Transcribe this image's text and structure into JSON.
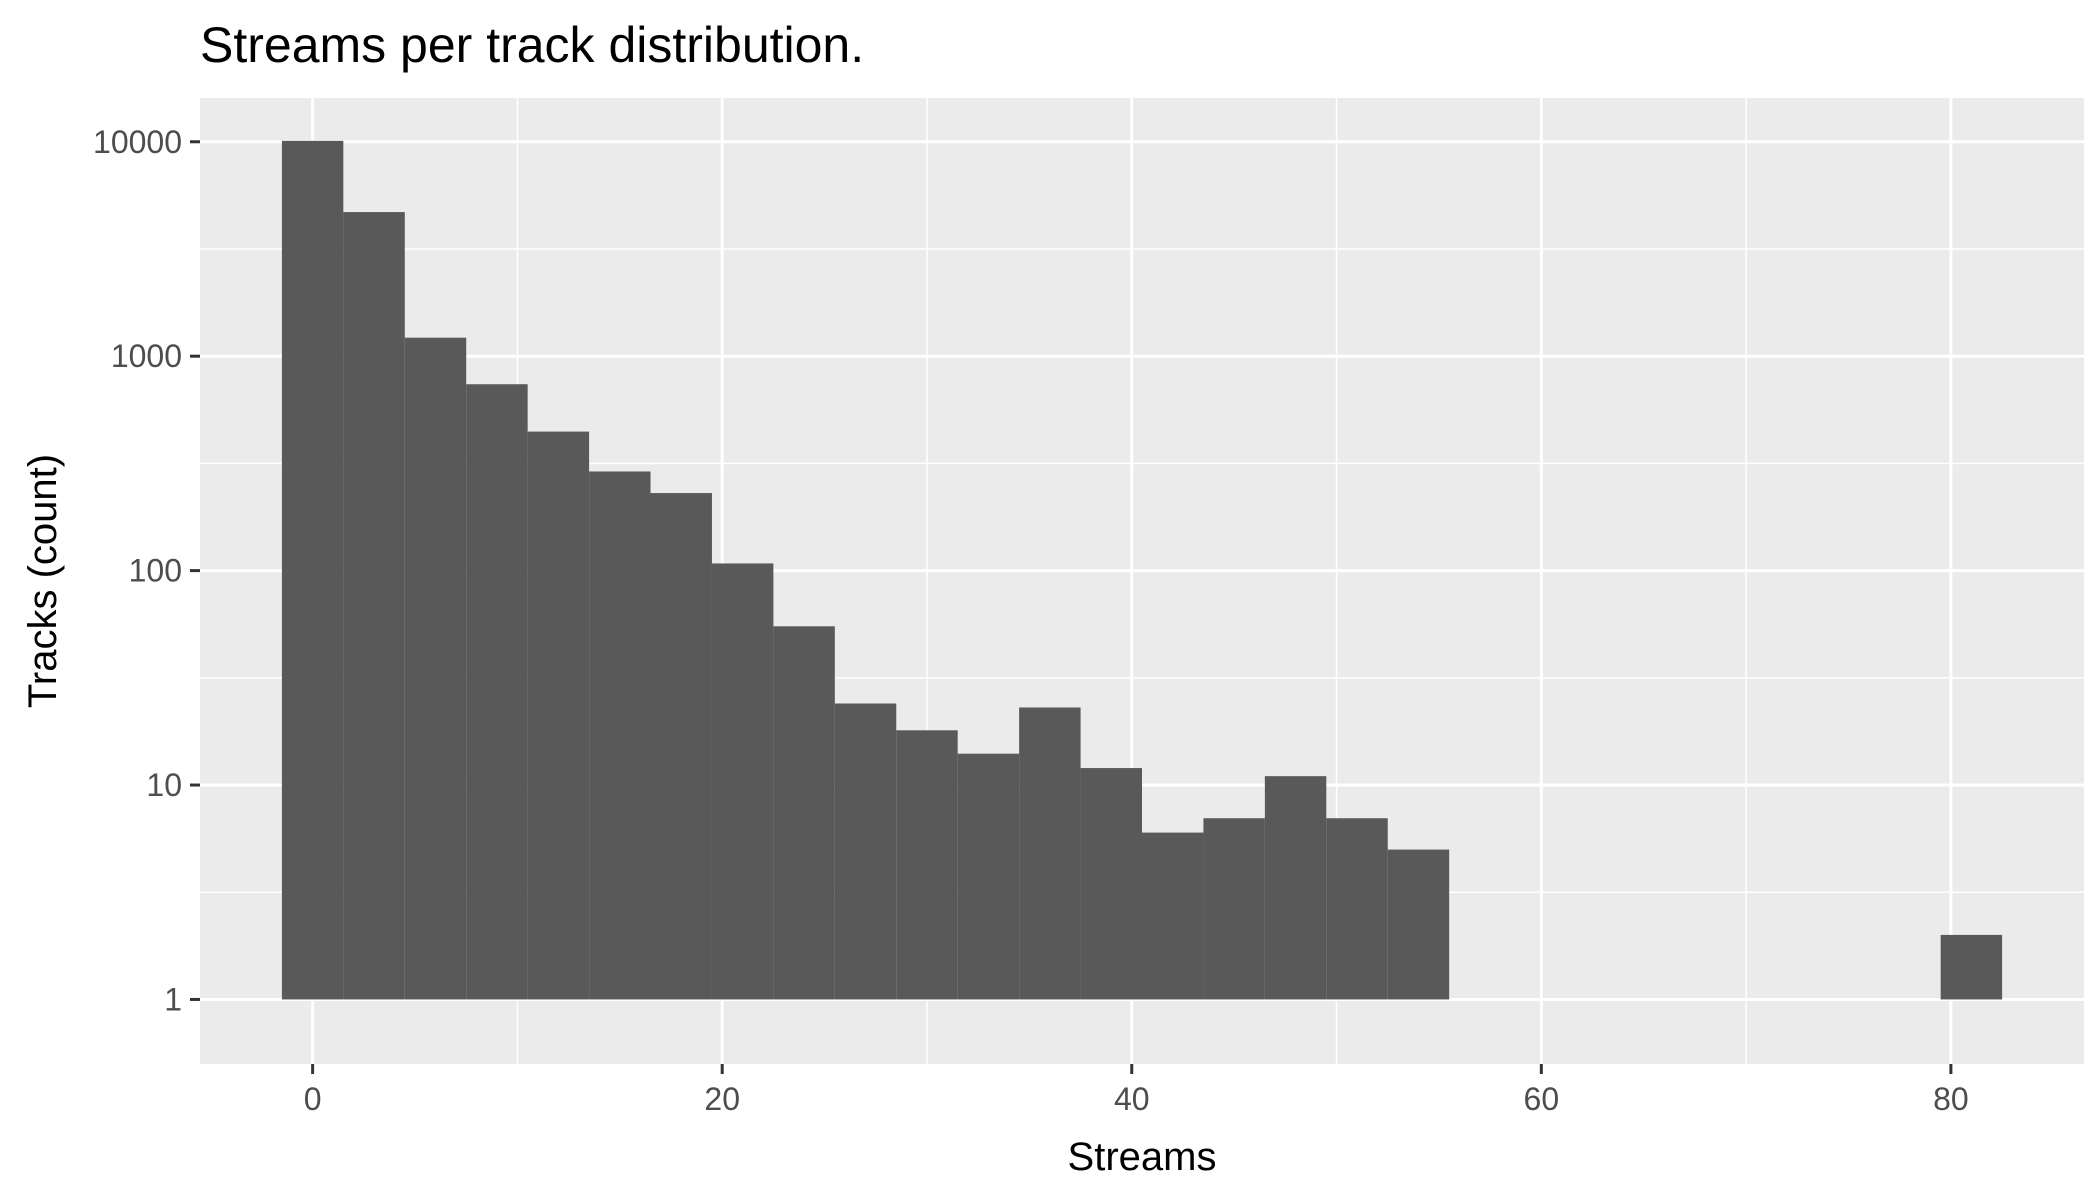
{
  "chart_data": {
    "type": "bar",
    "title": "Streams per track distribution.",
    "xlabel": "Streams",
    "ylabel": "Tracks (count)",
    "x_scale": "linear",
    "y_scale": "log10",
    "xlim": [
      -5.5,
      86.5
    ],
    "ylim": [
      0.5,
      16000
    ],
    "x_ticks": [
      0,
      20,
      40,
      60,
      80
    ],
    "x_tick_labels": [
      "0",
      "20",
      "40",
      "60",
      "80"
    ],
    "x_minor_ticks": [
      10,
      30,
      50,
      70
    ],
    "y_ticks": [
      1,
      10,
      100,
      1000,
      10000
    ],
    "y_tick_labels": [
      "1",
      "10",
      "100",
      "1000",
      "10000"
    ],
    "y_minor_ticks": [
      3.1623,
      31.623,
      316.23,
      3162.3
    ],
    "grid": true,
    "bin_width": 3,
    "bins": [
      {
        "start": -1.5,
        "end": 1.5,
        "count": 10100
      },
      {
        "start": 1.5,
        "end": 4.5,
        "count": 4700
      },
      {
        "start": 4.5,
        "end": 7.5,
        "count": 1220
      },
      {
        "start": 7.5,
        "end": 10.5,
        "count": 740
      },
      {
        "start": 10.5,
        "end": 13.5,
        "count": 445
      },
      {
        "start": 13.5,
        "end": 16.5,
        "count": 290
      },
      {
        "start": 16.5,
        "end": 19.5,
        "count": 230
      },
      {
        "start": 19.5,
        "end": 22.5,
        "count": 108
      },
      {
        "start": 22.5,
        "end": 25.5,
        "count": 55
      },
      {
        "start": 25.5,
        "end": 28.5,
        "count": 24
      },
      {
        "start": 28.5,
        "end": 31.5,
        "count": 18
      },
      {
        "start": 31.5,
        "end": 34.5,
        "count": 14
      },
      {
        "start": 34.5,
        "end": 37.5,
        "count": 23
      },
      {
        "start": 37.5,
        "end": 40.5,
        "count": 12
      },
      {
        "start": 40.5,
        "end": 43.5,
        "count": 6
      },
      {
        "start": 43.5,
        "end": 46.5,
        "count": 7
      },
      {
        "start": 46.5,
        "end": 49.5,
        "count": 11
      },
      {
        "start": 49.5,
        "end": 52.5,
        "count": 7
      },
      {
        "start": 52.5,
        "end": 55.5,
        "count": 5
      },
      {
        "start": 79.5,
        "end": 82.5,
        "count": 2
      }
    ],
    "colors": {
      "bar": "#595959",
      "panel_background": "#ebebeb",
      "grid": "#ffffff",
      "tick_label": "#4d4d4d"
    }
  }
}
